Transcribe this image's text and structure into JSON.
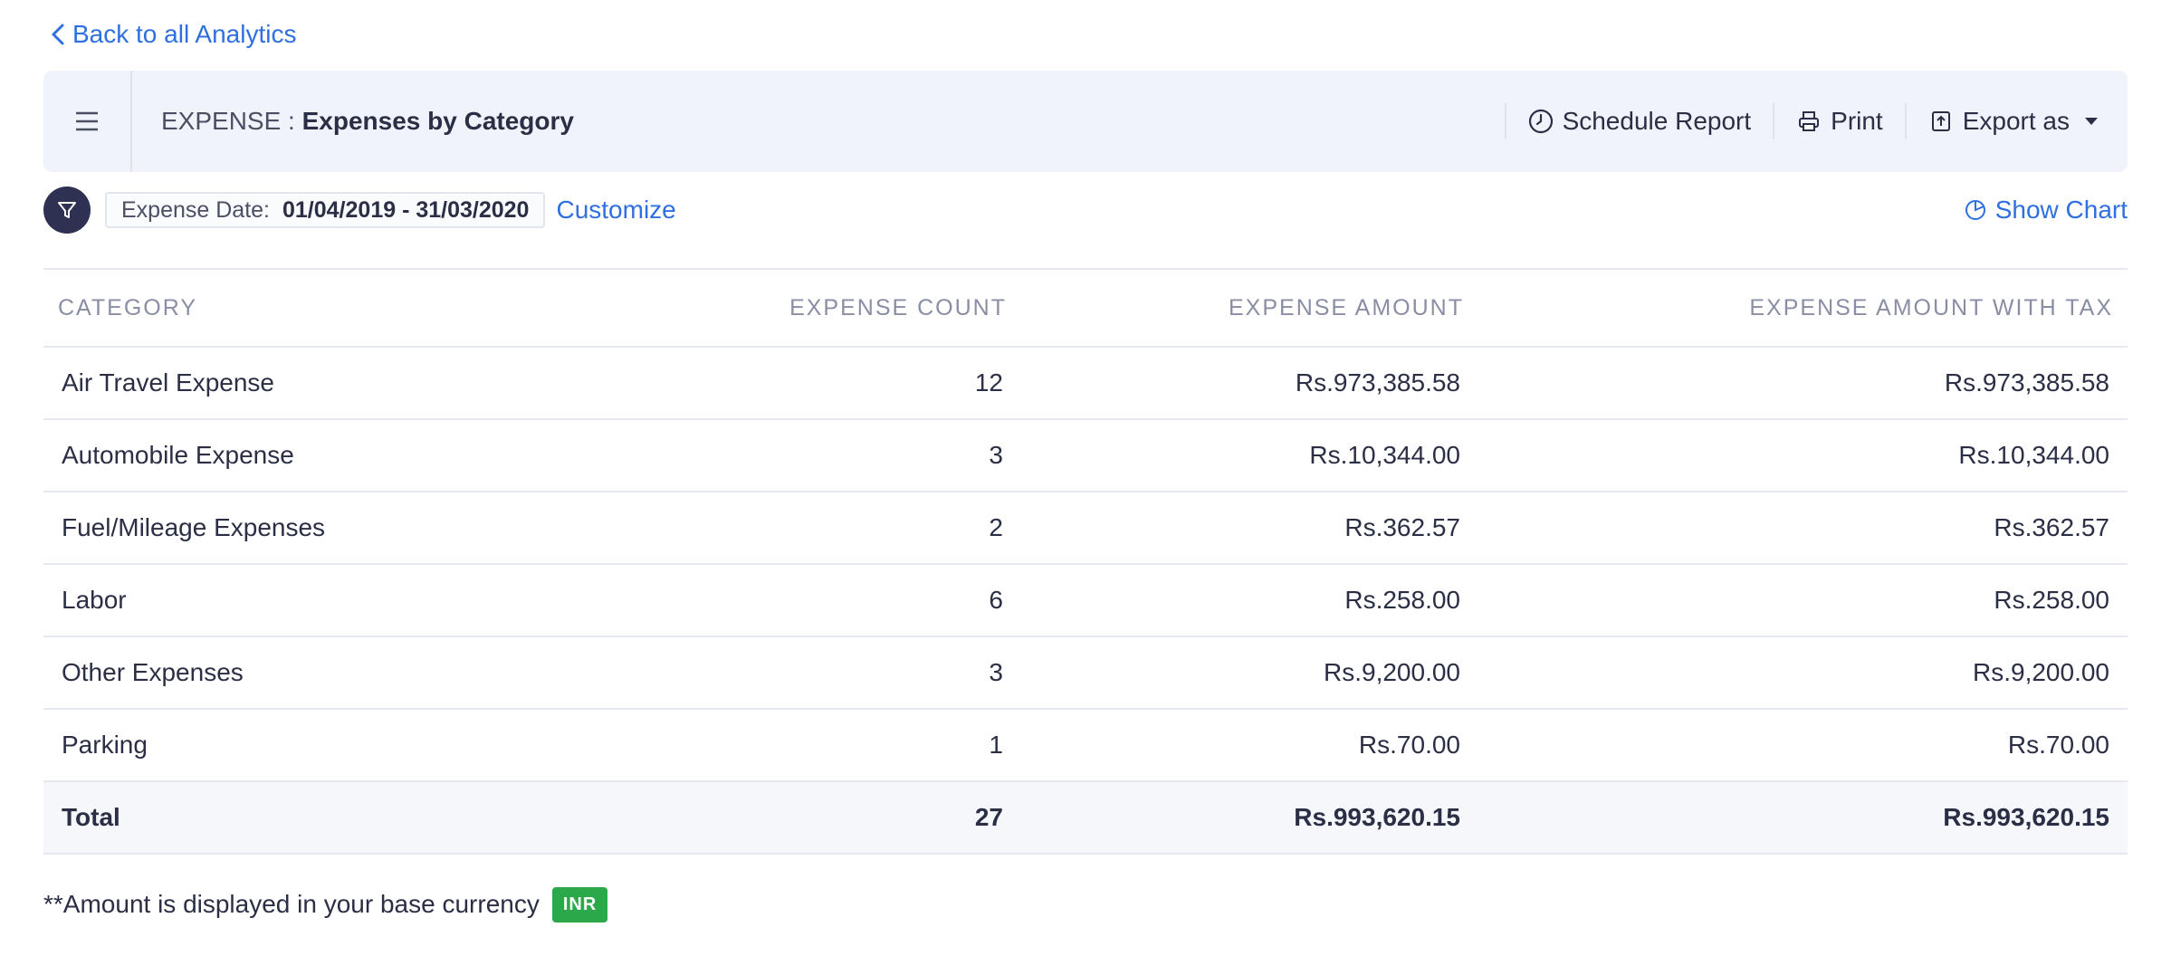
{
  "nav": {
    "back_label": "Back to all Analytics"
  },
  "header": {
    "module": "EXPENSE :",
    "report_title": "Expenses by Category",
    "actions": {
      "schedule": "Schedule Report",
      "print": "Print",
      "export": "Export as"
    }
  },
  "filters": {
    "date_label": "Expense Date:",
    "date_range": "01/04/2019 - 31/03/2020",
    "customize_label": "Customize",
    "show_chart_label": "Show Chart"
  },
  "table": {
    "columns": [
      "CATEGORY",
      "EXPENSE COUNT",
      "EXPENSE AMOUNT",
      "EXPENSE AMOUNT WITH TAX"
    ],
    "rows": [
      {
        "category": "Air Travel Expense",
        "count": "12",
        "amount": "Rs.973,385.58",
        "amount_tax": "Rs.973,385.58"
      },
      {
        "category": "Automobile Expense",
        "count": "3",
        "amount": "Rs.10,344.00",
        "amount_tax": "Rs.10,344.00"
      },
      {
        "category": "Fuel/Mileage Expenses",
        "count": "2",
        "amount": "Rs.362.57",
        "amount_tax": "Rs.362.57"
      },
      {
        "category": "Labor",
        "count": "6",
        "amount": "Rs.258.00",
        "amount_tax": "Rs.258.00"
      },
      {
        "category": "Other Expenses",
        "count": "3",
        "amount": "Rs.9,200.00",
        "amount_tax": "Rs.9,200.00"
      },
      {
        "category": "Parking",
        "count": "1",
        "amount": "Rs.70.00",
        "amount_tax": "Rs.70.00"
      }
    ],
    "total": {
      "label": "Total",
      "count": "27",
      "amount": "Rs.993,620.15",
      "amount_tax": "Rs.993,620.15"
    }
  },
  "footer": {
    "note": "**Amount is displayed in your base currency",
    "currency_badge": "INR"
  },
  "colors": {
    "accent": "#2f6fe0",
    "header_bg": "#f1f3fb",
    "filter_button": "#2e3152",
    "badge": "#2aa84a"
  }
}
